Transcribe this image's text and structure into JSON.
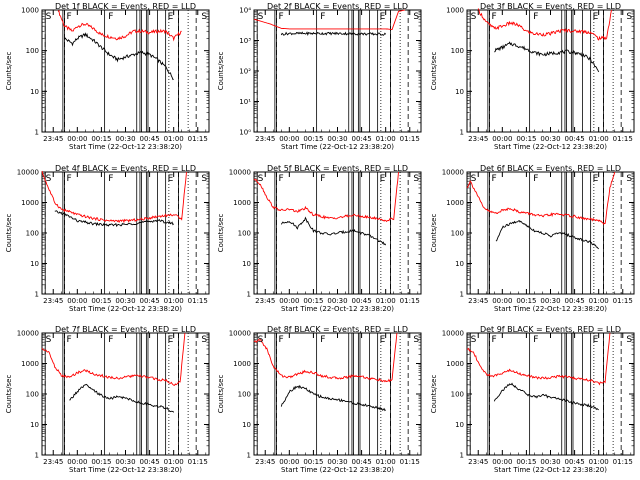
{
  "panel_title_template": "Det {n}f BLACK = Events, RED = LLD",
  "xlabel": "Start Time (22-Oct-12 23:38:20)",
  "ylabel": "Counts/sec",
  "x_tick_labels": [
    "23:45",
    "00:00",
    "00:15",
    "00:30",
    "00:45",
    "01:00",
    "01:15"
  ],
  "marker_letters": [
    "S",
    "F",
    "F",
    "E",
    "S"
  ],
  "colors": {
    "events": "#000000",
    "lld": "#ff0000",
    "axes": "#000000",
    "background": "#ffffff"
  },
  "chart_data": [
    {
      "type": "line",
      "panel": "1f",
      "title": "Det 1f BLACK = Events, RED = LLD",
      "xlabel": "Start Time (22-Oct-12 23:38:20)",
      "ylabel": "Counts/sec",
      "y_scale": "log",
      "ylim": [
        1,
        1000
      ],
      "y_tick_labels": [
        "1",
        "10",
        "100",
        "1000"
      ],
      "x_tick_labels": [
        "23:45",
        "00:00",
        "00:15",
        "00:30",
        "00:45",
        "01:00",
        "01:15"
      ],
      "series": [
        {
          "color": "red",
          "x": [
            "23:48",
            "23:52",
            "23:57",
            "00:00",
            "00:05",
            "00:10",
            "00:15",
            "00:20",
            "00:25",
            "00:30",
            "00:35",
            "00:40",
            "00:45",
            "00:50",
            "00:55",
            "01:00",
            "01:05"
          ],
          "values": [
            1000,
            400,
            300,
            400,
            450,
            350,
            250,
            220,
            200,
            230,
            300,
            300,
            280,
            300,
            300,
            200,
            300
          ]
        },
        {
          "color": "black",
          "x": [
            "23:52",
            "23:57",
            "00:00",
            "00:05",
            "00:10",
            "00:15",
            "00:20",
            "00:25",
            "00:30",
            "00:35",
            "00:40",
            "00:45",
            "00:50",
            "00:55",
            "01:00"
          ],
          "values": [
            200,
            150,
            200,
            250,
            180,
            120,
            80,
            60,
            70,
            80,
            90,
            80,
            60,
            40,
            20
          ]
        }
      ]
    },
    {
      "type": "line",
      "panel": "2f",
      "title": "Det 2f BLACK = Events, RED = LLD",
      "xlabel": "Start Time (22-Oct-12 23:38:20)",
      "ylabel": "Counts/sec",
      "y_scale": "log",
      "ylim": [
        1,
        10000
      ],
      "y_tick_labels": [
        "10⁰",
        "10¹",
        "10²",
        "10³",
        "10⁴"
      ],
      "x_tick_labels": [
        "23:45",
        "00:00",
        "00:15",
        "00:30",
        "00:45",
        "01:00",
        "01:15"
      ],
      "series": [
        {
          "color": "red",
          "x": [
            "23:38",
            "23:48",
            "23:55",
            "00:00",
            "00:30",
            "01:00",
            "01:04",
            "01:08",
            "01:12"
          ],
          "values": [
            5000,
            3500,
            2500,
            2400,
            2400,
            2400,
            2300,
            9000,
            10000
          ]
        },
        {
          "color": "black",
          "x": [
            "23:55",
            "00:00",
            "00:30",
            "01:00"
          ],
          "values": [
            1600,
            1700,
            1700,
            1600
          ]
        }
      ]
    },
    {
      "type": "line",
      "panel": "3f",
      "title": "Det 3f BLACK = Events, RED = LLD",
      "xlabel": "Start Time (22-Oct-12 23:38:20)",
      "ylabel": "Counts/sec",
      "y_scale": "log",
      "ylim": [
        1,
        1000
      ],
      "y_tick_labels": [
        "1",
        "10",
        "100",
        "1000"
      ],
      "x_tick_labels": [
        "23:45",
        "00:00",
        "00:15",
        "00:30",
        "00:45",
        "01:00",
        "01:15"
      ],
      "series": [
        {
          "color": "red",
          "x": [
            "23:45",
            "23:50",
            "23:55",
            "00:00",
            "00:05",
            "00:10",
            "00:15",
            "00:20",
            "00:25",
            "00:30",
            "00:35",
            "00:40",
            "00:45",
            "00:50",
            "00:55",
            "01:00",
            "01:05",
            "01:08"
          ],
          "values": [
            1000,
            500,
            350,
            400,
            480,
            420,
            300,
            260,
            250,
            260,
            300,
            320,
            300,
            300,
            280,
            200,
            210,
            1000
          ]
        },
        {
          "color": "black",
          "x": [
            "23:55",
            "00:00",
            "00:05",
            "00:10",
            "00:15",
            "00:20",
            "00:25",
            "00:30",
            "00:35",
            "00:40",
            "00:45",
            "00:50",
            "00:55",
            "01:00"
          ],
          "values": [
            100,
            120,
            150,
            130,
            110,
            90,
            80,
            85,
            90,
            95,
            90,
            80,
            60,
            30
          ]
        }
      ]
    },
    {
      "type": "line",
      "panel": "4f",
      "title": "Det 4f BLACK = Events, RED = LLD",
      "xlabel": "Start Time (22-Oct-12 23:38:20)",
      "ylabel": "Counts/sec",
      "y_scale": "log",
      "ylim": [
        1,
        10000
      ],
      "y_tick_labels": [
        "1",
        "10",
        "100",
        "1000",
        "10000"
      ],
      "x_tick_labels": [
        "23:45",
        "00:00",
        "00:15",
        "00:30",
        "00:45",
        "01:00",
        "01:15"
      ],
      "series": [
        {
          "color": "red",
          "x": [
            "23:38",
            "23:42",
            "23:46",
            "23:50",
            "23:55",
            "00:00",
            "00:10",
            "00:20",
            "00:30",
            "00:40",
            "00:50",
            "01:00",
            "01:05",
            "01:08"
          ],
          "values": [
            10000,
            3000,
            1000,
            600,
            500,
            400,
            300,
            250,
            250,
            280,
            350,
            400,
            300,
            10000
          ]
        },
        {
          "color": "black",
          "x": [
            "23:46",
            "23:50",
            "23:55",
            "00:00",
            "00:10",
            "00:20",
            "00:30",
            "00:40",
            "00:50",
            "01:00"
          ],
          "values": [
            500,
            450,
            350,
            250,
            200,
            180,
            190,
            220,
            260,
            200
          ]
        }
      ]
    },
    {
      "type": "line",
      "panel": "5f",
      "title": "Det 5f BLACK = Events, RED = LLD",
      "xlabel": "Start Time (22-Oct-12 23:38:20)",
      "ylabel": "Counts/sec",
      "y_scale": "log",
      "ylim": [
        1,
        10000
      ],
      "y_tick_labels": [
        "1",
        "10",
        "100",
        "1000",
        "10000"
      ],
      "x_tick_labels": [
        "23:45",
        "00:00",
        "00:15",
        "00:30",
        "00:45",
        "01:00",
        "01:15"
      ],
      "series": [
        {
          "color": "red",
          "x": [
            "23:38",
            "23:42",
            "23:46",
            "23:50",
            "23:55",
            "00:00",
            "00:05",
            "00:10",
            "00:15",
            "00:20",
            "00:25",
            "00:30",
            "00:35",
            "00:40",
            "00:45",
            "00:50",
            "00:55",
            "01:00",
            "01:05",
            "01:08"
          ],
          "values": [
            6000,
            4000,
            1500,
            700,
            550,
            600,
            500,
            650,
            400,
            350,
            300,
            320,
            350,
            380,
            350,
            320,
            300,
            250,
            300,
            10000
          ]
        },
        {
          "color": "black",
          "x": [
            "23:55",
            "00:00",
            "00:05",
            "00:10",
            "00:15",
            "00:20",
            "00:25",
            "00:30",
            "00:35",
            "00:40",
            "00:45",
            "00:50",
            "00:55",
            "01:00"
          ],
          "values": [
            200,
            250,
            150,
            300,
            120,
            100,
            90,
            100,
            110,
            120,
            100,
            80,
            60,
            40
          ]
        }
      ]
    },
    {
      "type": "line",
      "panel": "6f",
      "title": "Det 6f BLACK = Events, RED = LLD",
      "xlabel": "Start Time (22-Oct-12 23:38:20)",
      "ylabel": "Counts/sec",
      "y_scale": "log",
      "ylim": [
        1,
        10000
      ],
      "y_tick_labels": [
        "1",
        "10",
        "100",
        "1000",
        "10000"
      ],
      "x_tick_labels": [
        "23:45",
        "00:00",
        "00:15",
        "00:30",
        "00:45",
        "01:00",
        "01:15"
      ],
      "series": [
        {
          "color": "red",
          "x": [
            "23:38",
            "23:40",
            "23:44",
            "23:48",
            "23:52",
            "23:56",
            "00:00",
            "00:05",
            "00:10",
            "00:15",
            "00:20",
            "00:25",
            "00:30",
            "00:35",
            "00:40",
            "00:45",
            "00:50",
            "00:55",
            "01:00",
            "01:04",
            "01:07",
            "01:10"
          ],
          "values": [
            3000,
            5000,
            2000,
            700,
            500,
            450,
            550,
            650,
            500,
            450,
            400,
            350,
            400,
            420,
            380,
            350,
            300,
            280,
            250,
            200,
            3000,
            10000
          ]
        },
        {
          "color": "black",
          "x": [
            "23:56",
            "00:00",
            "00:05",
            "00:10",
            "00:15",
            "00:20",
            "00:25",
            "00:30",
            "00:35",
            "00:40",
            "00:45",
            "00:50",
            "00:55",
            "01:00"
          ],
          "values": [
            50,
            150,
            200,
            250,
            180,
            120,
            100,
            80,
            100,
            90,
            70,
            60,
            50,
            30
          ]
        }
      ]
    },
    {
      "type": "line",
      "panel": "7f",
      "title": "Det 7f BLACK = Events, RED = LLD",
      "xlabel": "Start Time (22-Oct-12 23:38:20)",
      "ylabel": "Counts/sec",
      "y_scale": "log",
      "ylim": [
        1,
        10000
      ],
      "y_tick_labels": [
        "1",
        "10",
        "100",
        "1000",
        "10000"
      ],
      "x_tick_labels": [
        "23:45",
        "00:00",
        "00:15",
        "00:30",
        "00:45",
        "01:00",
        "01:15"
      ],
      "series": [
        {
          "color": "red",
          "x": [
            "23:38",
            "23:42",
            "23:46",
            "23:50",
            "23:55",
            "00:00",
            "00:05",
            "00:10",
            "00:15",
            "00:20",
            "00:25",
            "00:30",
            "00:35",
            "00:40",
            "00:45",
            "00:50",
            "00:55",
            "01:00",
            "01:04",
            "01:07"
          ],
          "values": [
            3000,
            2500,
            800,
            400,
            350,
            500,
            600,
            450,
            400,
            350,
            330,
            350,
            400,
            380,
            350,
            300,
            280,
            200,
            250,
            10000
          ]
        },
        {
          "color": "black",
          "x": [
            "23:55",
            "00:00",
            "00:05",
            "00:10",
            "00:15",
            "00:20",
            "00:25",
            "00:30",
            "00:35",
            "00:40",
            "00:45",
            "00:50",
            "00:55",
            "01:00"
          ],
          "values": [
            60,
            120,
            200,
            130,
            90,
            70,
            80,
            75,
            60,
            50,
            45,
            40,
            35,
            25
          ]
        }
      ]
    },
    {
      "type": "line",
      "panel": "8f",
      "title": "Det 8f BLACK = Events, RED = LLD",
      "xlabel": "Start Time (22-Oct-12 23:38:20)",
      "ylabel": "Counts/sec",
      "y_scale": "log",
      "ylim": [
        1,
        10000
      ],
      "y_tick_labels": [
        "1",
        "10",
        "100",
        "1000",
        "10000"
      ],
      "x_tick_labels": [
        "23:45",
        "00:00",
        "00:15",
        "00:30",
        "00:45",
        "01:00",
        "01:15"
      ],
      "series": [
        {
          "color": "red",
          "x": [
            "23:38",
            "23:42",
            "23:46",
            "23:50",
            "23:55",
            "00:00",
            "00:05",
            "00:10",
            "00:15",
            "00:20",
            "00:25",
            "00:30",
            "00:35",
            "00:40",
            "00:45",
            "00:50",
            "00:55",
            "01:00",
            "01:04",
            "01:07"
          ],
          "values": [
            5000,
            6000,
            3000,
            800,
            400,
            350,
            450,
            550,
            500,
            400,
            350,
            330,
            350,
            400,
            380,
            320,
            300,
            250,
            300,
            10000
          ]
        },
        {
          "color": "black",
          "x": [
            "23:55",
            "00:00",
            "00:05",
            "00:10",
            "00:15",
            "00:20",
            "00:25",
            "00:30",
            "00:35",
            "00:40",
            "00:45",
            "00:50",
            "00:55",
            "01:00"
          ],
          "values": [
            40,
            120,
            180,
            150,
            100,
            80,
            70,
            65,
            60,
            50,
            45,
            40,
            35,
            30
          ]
        }
      ]
    },
    {
      "type": "line",
      "panel": "9f",
      "title": "Det 9f BLACK = Events, RED = LLD",
      "xlabel": "Start Time (22-Oct-12 23:38:20)",
      "ylabel": "Counts/sec",
      "y_scale": "log",
      "ylim": [
        1,
        10000
      ],
      "y_tick_labels": [
        "1",
        "10",
        "100",
        "1000",
        "10000"
      ],
      "x_tick_labels": [
        "23:45",
        "00:00",
        "00:15",
        "00:30",
        "00:45",
        "01:00",
        "01:15"
      ],
      "series": [
        {
          "color": "red",
          "x": [
            "23:38",
            "23:42",
            "23:46",
            "23:50",
            "23:55",
            "00:00",
            "00:05",
            "00:10",
            "00:15",
            "00:20",
            "00:25",
            "00:30",
            "00:35",
            "00:40",
            "00:45",
            "00:50",
            "00:55",
            "01:00",
            "01:04",
            "01:07"
          ],
          "values": [
            3000,
            2500,
            800,
            450,
            380,
            500,
            600,
            480,
            400,
            350,
            330,
            350,
            380,
            360,
            330,
            300,
            280,
            220,
            250,
            10000
          ]
        },
        {
          "color": "black",
          "x": [
            "23:55",
            "00:00",
            "00:05",
            "00:10",
            "00:15",
            "00:20",
            "00:25",
            "00:30",
            "00:35",
            "00:40",
            "00:45",
            "00:50",
            "00:55",
            "01:00"
          ],
          "values": [
            60,
            130,
            220,
            150,
            100,
            80,
            90,
            80,
            70,
            60,
            50,
            45,
            40,
            30
          ]
        }
      ]
    }
  ]
}
